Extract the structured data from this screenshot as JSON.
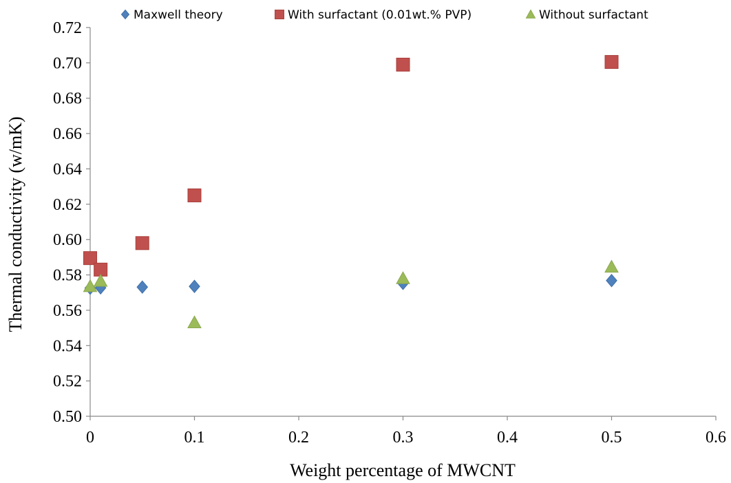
{
  "chart_data": {
    "type": "scatter",
    "title": "",
    "xlabel": "Weight percentage of MWCNT",
    "ylabel": "Thermal conductivity (w/mK)",
    "xlim": [
      0,
      0.6
    ],
    "ylim": [
      0.5,
      0.72
    ],
    "x_ticks": [
      "0",
      "0.1",
      "0.2",
      "0.3",
      "0.4",
      "0.5",
      "0.6"
    ],
    "y_ticks": [
      "0.50",
      "0.52",
      "0.54",
      "0.56",
      "0.58",
      "0.60",
      "0.62",
      "0.64",
      "0.66",
      "0.68",
      "0.70",
      "0.72"
    ],
    "legend_position": "top",
    "grid": false,
    "series": [
      {
        "name": "Maxwell theory",
        "marker": "diamond",
        "color": "#4F81BD",
        "points": [
          [
            0,
            0.5725
          ],
          [
            0.01,
            0.5727
          ],
          [
            0.05,
            0.5731
          ],
          [
            0.1,
            0.5735
          ],
          [
            0.3,
            0.5752
          ],
          [
            0.5,
            0.5768
          ]
        ]
      },
      {
        "name": "With surfactant (0.01wt.% PVP)",
        "marker": "square",
        "color": "#C0504D",
        "points": [
          [
            0,
            0.5895
          ],
          [
            0.01,
            0.583
          ],
          [
            0.05,
            0.598
          ],
          [
            0.1,
            0.625
          ],
          [
            0.3,
            0.699
          ],
          [
            0.5,
            0.7005
          ]
        ]
      },
      {
        "name": "Without surfactant",
        "marker": "triangle",
        "color": "#9BBB59",
        "points": [
          [
            0,
            0.5735
          ],
          [
            0.01,
            0.5765
          ],
          [
            0.1,
            0.553
          ],
          [
            0.3,
            0.578
          ],
          [
            0.5,
            0.5845
          ]
        ]
      }
    ]
  }
}
